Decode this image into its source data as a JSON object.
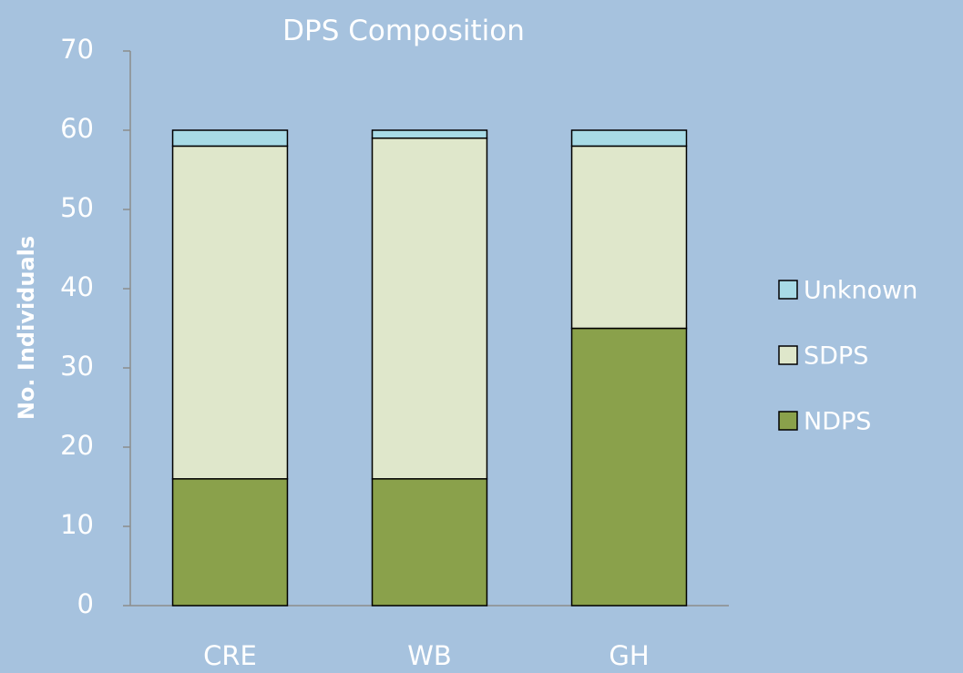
{
  "chart_data": {
    "type": "stacked_bar",
    "title": "DPS Composition",
    "y_label": "No. Individuals",
    "categories": [
      "CRE",
      "WB",
      "GH"
    ],
    "series": [
      {
        "name": "NDPS",
        "color": "#8aa14b",
        "values": [
          16,
          16,
          35
        ]
      },
      {
        "name": "SDPS",
        "color": "#dfe7cb",
        "values": [
          42,
          43,
          23
        ]
      },
      {
        "name": "Unknown",
        "color": "#a8dbe6",
        "values": [
          2,
          1,
          2
        ]
      }
    ],
    "ylim": [
      0,
      70
    ],
    "yticks": [
      0,
      10,
      20,
      30,
      40,
      50,
      60,
      70
    ],
    "legend": "right"
  }
}
